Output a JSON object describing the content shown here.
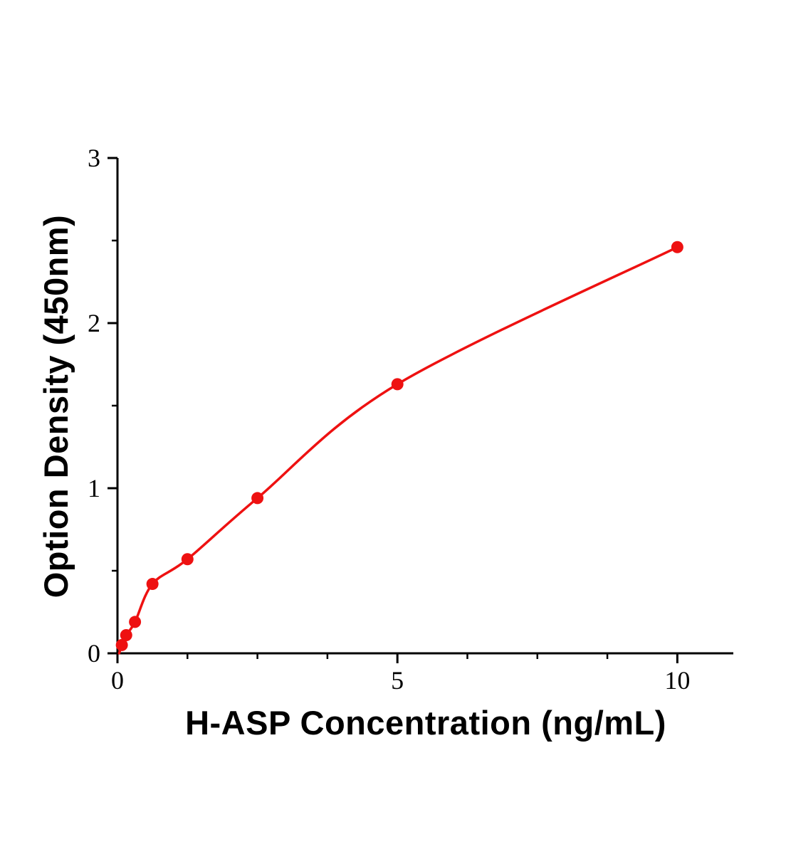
{
  "chart_data": {
    "type": "scatter",
    "title": "",
    "xlabel": "H-ASP Concentration (ng/mL)",
    "ylabel": "Option Density (450nm)",
    "xlim": [
      0,
      11
    ],
    "ylim": [
      0,
      3
    ],
    "x_ticks": [
      0,
      5,
      10
    ],
    "x_tick_labels": [
      "0",
      "5",
      "10"
    ],
    "y_ticks": [
      0,
      1,
      2,
      3
    ],
    "y_tick_labels": [
      "0",
      "1",
      "2",
      "3"
    ],
    "x_minor_step": 1.25,
    "y_minor_step": 0.5,
    "grid": false,
    "legend": "none",
    "marker_color": "#ee1111",
    "line_color": "#ee1111",
    "curve_through_origin": true,
    "points": [
      {
        "x": 0.078,
        "y": 0.05
      },
      {
        "x": 0.156,
        "y": 0.11
      },
      {
        "x": 0.313,
        "y": 0.19
      },
      {
        "x": 0.625,
        "y": 0.42
      },
      {
        "x": 1.25,
        "y": 0.57
      },
      {
        "x": 2.5,
        "y": 0.94
      },
      {
        "x": 5,
        "y": 1.63
      },
      {
        "x": 10,
        "y": 2.46
      }
    ]
  }
}
